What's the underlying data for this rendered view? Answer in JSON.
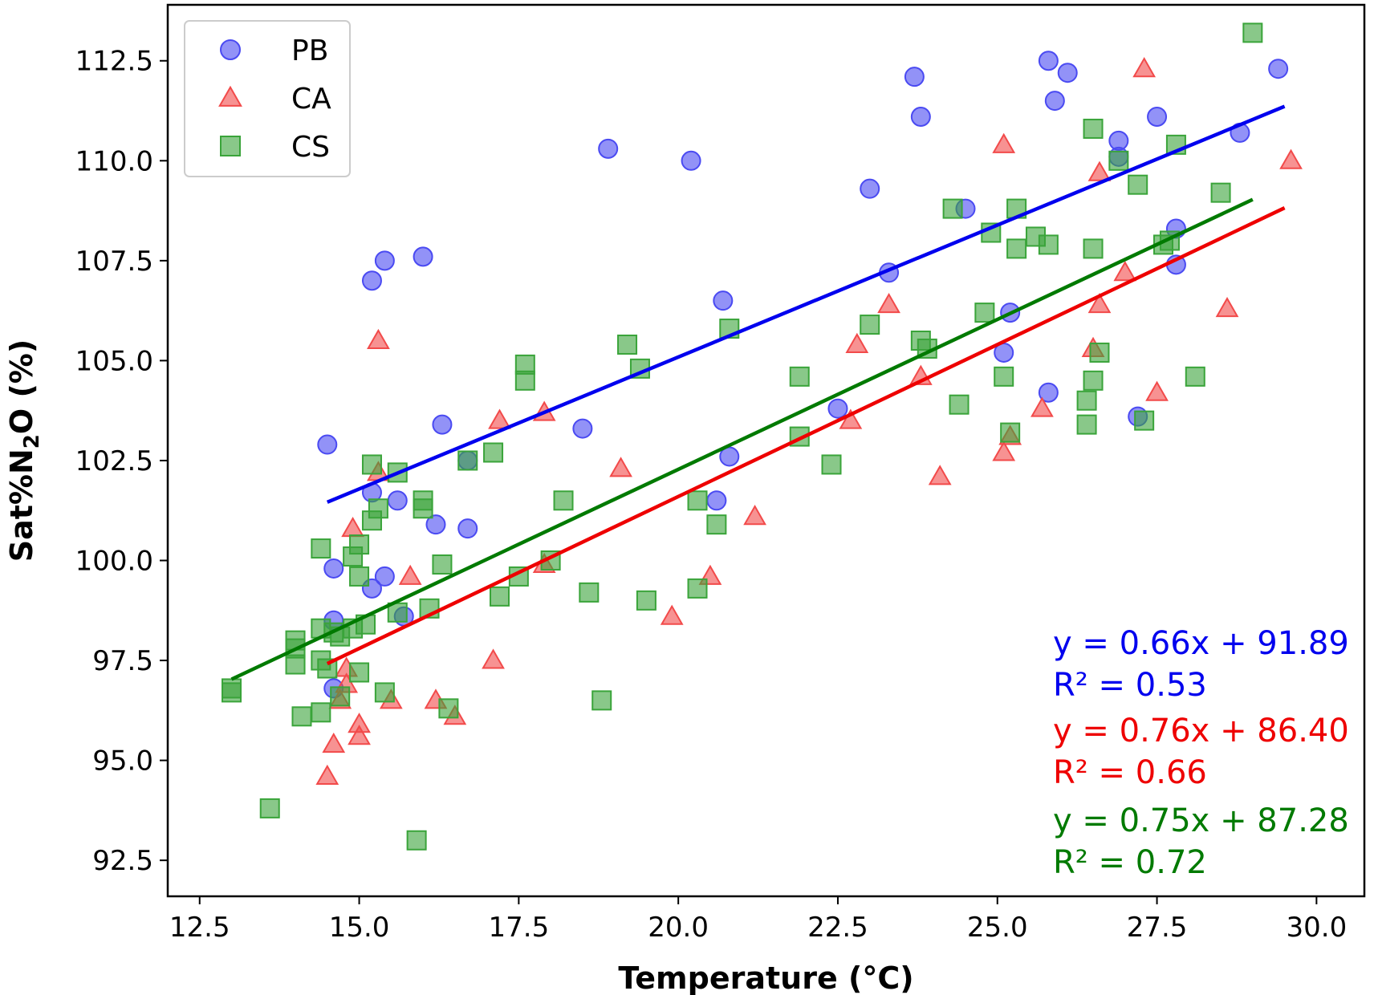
{
  "chart_data": {
    "type": "scatter",
    "title": "",
    "xlabel": "Temperature (°C)",
    "ylabel_parts": {
      "pre": "Sat%N",
      "sub": "2",
      "post": "O (%)"
    },
    "xlim": [
      12.0,
      30.75
    ],
    "ylim": [
      91.6,
      113.9
    ],
    "xticks": [
      12.5,
      15.0,
      17.5,
      20.0,
      22.5,
      25.0,
      27.5,
      30.0
    ],
    "xtick_labels": [
      "12.5",
      "15.0",
      "17.5",
      "20.0",
      "22.5",
      "25.0",
      "27.5",
      "30.0"
    ],
    "yticks": [
      92.5,
      95.0,
      97.5,
      100.0,
      102.5,
      105.0,
      107.5,
      110.0,
      112.5
    ],
    "ytick_labels": [
      "92.5",
      "95.0",
      "97.5",
      "100.0",
      "102.5",
      "105.0",
      "107.5",
      "110.0",
      "112.5"
    ],
    "grid": false,
    "legend_position": "top-left",
    "series": [
      {
        "name": "PB",
        "marker": "circle",
        "color": "#4a4af2",
        "fit": {
          "slope": 0.66,
          "intercept": 91.89,
          "x_range": [
            14.5,
            29.5
          ]
        },
        "equation": "y = 0.66x + 91.89",
        "r2": "R² = 0.53",
        "points": [
          [
            14.5,
            102.9
          ],
          [
            14.6,
            98.5
          ],
          [
            14.6,
            99.8
          ],
          [
            14.6,
            96.8
          ],
          [
            15.2,
            107.0
          ],
          [
            15.4,
            107.5
          ],
          [
            15.2,
            101.7
          ],
          [
            15.2,
            99.3
          ],
          [
            15.4,
            99.6
          ],
          [
            15.6,
            101.5
          ],
          [
            15.7,
            98.6
          ],
          [
            16.0,
            107.6
          ],
          [
            16.2,
            100.9
          ],
          [
            16.3,
            103.4
          ],
          [
            16.7,
            102.5
          ],
          [
            16.7,
            100.8
          ],
          [
            18.5,
            103.3
          ],
          [
            18.9,
            110.3
          ],
          [
            20.2,
            110.0
          ],
          [
            20.6,
            101.5
          ],
          [
            20.7,
            106.5
          ],
          [
            20.8,
            102.6
          ],
          [
            22.5,
            103.8
          ],
          [
            23.0,
            109.3
          ],
          [
            23.3,
            107.2
          ],
          [
            23.7,
            112.1
          ],
          [
            23.8,
            111.1
          ],
          [
            24.5,
            108.8
          ],
          [
            25.1,
            105.2
          ],
          [
            25.2,
            106.2
          ],
          [
            25.8,
            112.5
          ],
          [
            25.9,
            111.5
          ],
          [
            25.8,
            104.2
          ],
          [
            26.1,
            112.2
          ],
          [
            26.9,
            110.5
          ],
          [
            26.9,
            110.1
          ],
          [
            27.2,
            103.6
          ],
          [
            27.5,
            111.1
          ],
          [
            27.8,
            107.4
          ],
          [
            27.8,
            108.3
          ],
          [
            28.8,
            110.7
          ],
          [
            29.4,
            112.3
          ]
        ]
      },
      {
        "name": "CA",
        "marker": "triangle",
        "color": "#f24a4a",
        "fit": {
          "slope": 0.76,
          "intercept": 86.4,
          "x_range": [
            14.5,
            29.5
          ]
        },
        "equation": "y = 0.76x + 86.40",
        "r2": "R² = 0.66",
        "points": [
          [
            14.5,
            94.6
          ],
          [
            14.6,
            95.4
          ],
          [
            14.7,
            96.5
          ],
          [
            14.8,
            96.9
          ],
          [
            14.8,
            97.3
          ],
          [
            14.9,
            100.8
          ],
          [
            15.0,
            95.6
          ],
          [
            15.0,
            95.9
          ],
          [
            15.3,
            102.2
          ],
          [
            15.3,
            105.5
          ],
          [
            15.5,
            96.5
          ],
          [
            15.8,
            99.6
          ],
          [
            16.2,
            96.5
          ],
          [
            16.5,
            96.1
          ],
          [
            17.1,
            97.5
          ],
          [
            17.2,
            103.5
          ],
          [
            17.9,
            103.7
          ],
          [
            17.9,
            99.9
          ],
          [
            19.1,
            102.3
          ],
          [
            19.9,
            98.6
          ],
          [
            20.5,
            99.6
          ],
          [
            21.2,
            101.1
          ],
          [
            22.7,
            103.5
          ],
          [
            22.8,
            105.4
          ],
          [
            23.3,
            106.4
          ],
          [
            23.8,
            104.6
          ],
          [
            24.1,
            102.1
          ],
          [
            25.1,
            102.7
          ],
          [
            25.1,
            110.4
          ],
          [
            25.2,
            103.1
          ],
          [
            25.7,
            103.8
          ],
          [
            26.5,
            105.3
          ],
          [
            26.6,
            109.7
          ],
          [
            26.6,
            106.4
          ],
          [
            27.0,
            107.2
          ],
          [
            27.3,
            112.3
          ],
          [
            27.5,
            104.2
          ],
          [
            28.6,
            106.3
          ],
          [
            29.6,
            110.0
          ]
        ]
      },
      {
        "name": "CS",
        "marker": "square",
        "color": "#3aa43a",
        "fit": {
          "slope": 0.75,
          "intercept": 87.28,
          "x_range": [
            13.0,
            29.0
          ]
        },
        "equation": "y = 0.75x + 87.28",
        "r2": "R² = 0.72",
        "points": [
          [
            13.0,
            96.8
          ],
          [
            13.0,
            96.7
          ],
          [
            13.6,
            93.8
          ],
          [
            14.0,
            98.0
          ],
          [
            14.0,
            97.8
          ],
          [
            14.0,
            97.4
          ],
          [
            14.1,
            96.1
          ],
          [
            14.4,
            96.2
          ],
          [
            14.4,
            97.5
          ],
          [
            14.4,
            98.3
          ],
          [
            14.4,
            100.3
          ],
          [
            14.5,
            97.3
          ],
          [
            14.6,
            98.2
          ],
          [
            14.7,
            98.1
          ],
          [
            14.7,
            96.6
          ],
          [
            14.9,
            98.3
          ],
          [
            14.9,
            100.1
          ],
          [
            15.0,
            97.2
          ],
          [
            15.0,
            99.6
          ],
          [
            15.0,
            100.4
          ],
          [
            15.1,
            98.4
          ],
          [
            15.2,
            101.0
          ],
          [
            15.2,
            102.4
          ],
          [
            15.3,
            101.3
          ],
          [
            15.4,
            96.7
          ],
          [
            15.6,
            98.7
          ],
          [
            15.6,
            102.2
          ],
          [
            15.9,
            93.0
          ],
          [
            16.0,
            101.5
          ],
          [
            16.0,
            101.3
          ],
          [
            16.1,
            98.8
          ],
          [
            16.3,
            99.9
          ],
          [
            16.4,
            96.3
          ],
          [
            16.7,
            102.5
          ],
          [
            17.1,
            102.7
          ],
          [
            17.2,
            99.1
          ],
          [
            17.5,
            99.6
          ],
          [
            17.6,
            104.9
          ],
          [
            17.6,
            104.5
          ],
          [
            18.0,
            100.0
          ],
          [
            18.2,
            101.5
          ],
          [
            18.6,
            99.2
          ],
          [
            18.8,
            96.5
          ],
          [
            19.2,
            105.4
          ],
          [
            19.4,
            104.8
          ],
          [
            19.5,
            99.0
          ],
          [
            20.3,
            99.3
          ],
          [
            20.3,
            101.5
          ],
          [
            20.6,
            100.9
          ],
          [
            20.8,
            105.8
          ],
          [
            21.9,
            103.1
          ],
          [
            21.9,
            104.6
          ],
          [
            22.4,
            102.4
          ],
          [
            23.0,
            105.9
          ],
          [
            23.8,
            105.5
          ],
          [
            23.9,
            105.3
          ],
          [
            24.3,
            108.8
          ],
          [
            24.4,
            103.9
          ],
          [
            24.8,
            106.2
          ],
          [
            24.9,
            108.2
          ],
          [
            25.1,
            104.6
          ],
          [
            25.2,
            103.2
          ],
          [
            25.3,
            107.8
          ],
          [
            25.3,
            108.8
          ],
          [
            25.6,
            108.1
          ],
          [
            25.8,
            107.9
          ],
          [
            26.4,
            104.0
          ],
          [
            26.4,
            103.4
          ],
          [
            26.5,
            104.5
          ],
          [
            26.5,
            107.8
          ],
          [
            26.6,
            105.2
          ],
          [
            26.5,
            110.8
          ],
          [
            26.9,
            110.0
          ],
          [
            27.2,
            109.4
          ],
          [
            27.3,
            103.5
          ],
          [
            27.6,
            107.9
          ],
          [
            27.7,
            108.0
          ],
          [
            27.8,
            110.4
          ],
          [
            28.1,
            104.6
          ],
          [
            28.5,
            109.2
          ],
          [
            29.0,
            113.2
          ]
        ]
      }
    ]
  }
}
